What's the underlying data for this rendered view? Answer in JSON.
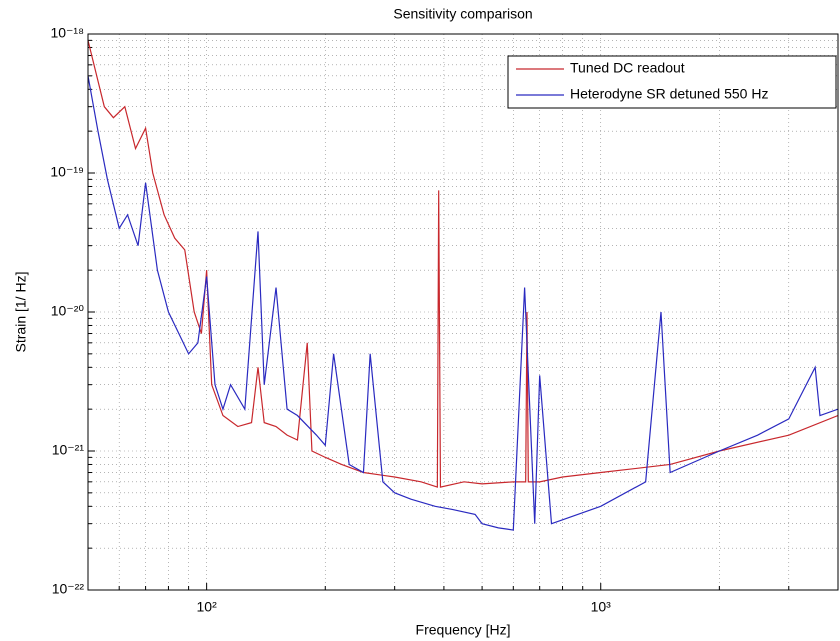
{
  "chart_data": {
    "type": "line",
    "title": "Sensitivity comparison",
    "x_label": "Frequency [Hz]",
    "y_label": "Strain [1/ Hz]",
    "xscale": "log",
    "yscale": "log",
    "grid": true,
    "legend": "upper right",
    "xlim": [
      50,
      4000
    ],
    "ylim": [
      1e-22,
      1e-18
    ],
    "xticks": [
      {
        "value": 100,
        "label": "10²"
      },
      {
        "value": 1000,
        "label": "10³"
      }
    ],
    "xminorticks": [
      60,
      70,
      80,
      90,
      200,
      300,
      400,
      500,
      600,
      700,
      800,
      900,
      2000,
      3000
    ],
    "yticks": [
      {
        "value": 1e-22,
        "label": "10⁻²²"
      },
      {
        "value": 1e-21,
        "label": "10⁻²¹"
      },
      {
        "value": 1e-20,
        "label": "10⁻²⁰"
      },
      {
        "value": 1e-19,
        "label": "10⁻¹⁹"
      },
      {
        "value": 1e-18,
        "label": "10⁻¹⁸"
      }
    ],
    "yminorticks": [
      2e-22,
      3e-22,
      4e-22,
      5e-22,
      6e-22,
      7e-22,
      8e-22,
      9e-22,
      2e-21,
      3e-21,
      4e-21,
      5e-21,
      6e-21,
      7e-21,
      8e-21,
      9e-21,
      2e-20,
      3e-20,
      4e-20,
      5e-20,
      6e-20,
      7e-20,
      8e-20,
      9e-20,
      2e-19,
      3e-19,
      4e-19,
      5e-19,
      6e-19,
      7e-19,
      8e-19,
      9e-19
    ],
    "series": [
      {
        "name": "Tuned DC readout",
        "color": "#c8282d",
        "x": [
          50,
          55,
          58,
          62,
          66,
          70,
          73,
          78,
          83,
          88,
          93,
          97,
          100,
          103,
          110,
          120,
          130,
          135,
          140,
          150,
          160,
          170,
          180,
          185,
          200,
          220,
          250,
          300,
          350,
          385,
          388,
          392,
          450,
          500,
          600,
          645,
          650,
          655,
          700,
          800,
          1000,
          1500,
          2000,
          3000,
          4000
        ],
        "values": [
          9e-19,
          3e-19,
          2.5e-19,
          3e-19,
          1.5e-19,
          2.1e-19,
          1e-19,
          5e-20,
          3.4e-20,
          2.8e-20,
          1e-20,
          7e-21,
          2e-20,
          3e-21,
          1.8e-21,
          1.5e-21,
          1.6e-21,
          4e-21,
          1.6e-21,
          1.5e-21,
          1.3e-21,
          1.2e-21,
          6e-21,
          1e-21,
          9e-22,
          8e-22,
          7e-22,
          6.5e-22,
          6e-22,
          5.5e-22,
          7.5e-20,
          5.5e-22,
          6e-22,
          5.8e-22,
          6e-22,
          6e-22,
          1e-20,
          6e-22,
          6e-22,
          6.5e-22,
          7e-22,
          8e-22,
          1e-21,
          1.3e-21,
          1.8e-21
        ]
      },
      {
        "name": "Heterodyne SR detuned 550 Hz",
        "color": "#2a2ac0",
        "x": [
          50,
          53,
          56,
          60,
          63,
          67,
          70,
          75,
          80,
          85,
          90,
          95,
          100,
          105,
          110,
          115,
          125,
          135,
          140,
          150,
          160,
          170,
          190,
          200,
          210,
          230,
          250,
          260,
          280,
          300,
          330,
          380,
          420,
          480,
          500,
          550,
          600,
          641,
          680,
          700,
          750,
          800,
          1000,
          1300,
          1422,
          1500,
          2000,
          2500,
          3000,
          3500,
          3600,
          4000
        ],
        "values": [
          5e-19,
          2e-19,
          9e-20,
          4e-20,
          5e-20,
          3e-20,
          8.5e-20,
          2e-20,
          1e-20,
          7e-21,
          5e-21,
          6e-21,
          1.8e-20,
          3e-21,
          2e-21,
          3e-21,
          2e-21,
          3.8e-20,
          3e-21,
          1.5e-20,
          2e-21,
          1.8e-21,
          1.3e-21,
          1.1e-21,
          5e-21,
          8e-22,
          7e-22,
          5e-21,
          6e-22,
          5e-22,
          4.5e-22,
          4e-22,
          3.8e-22,
          3.5e-22,
          3e-22,
          2.8e-22,
          2.7e-22,
          1.5e-20,
          3e-22,
          3.5e-21,
          3e-22,
          3.2e-22,
          4e-22,
          6e-22,
          1e-20,
          7e-22,
          1e-21,
          1.3e-21,
          1.7e-21,
          4e-21,
          1.8e-21,
          2e-21
        ]
      }
    ]
  }
}
